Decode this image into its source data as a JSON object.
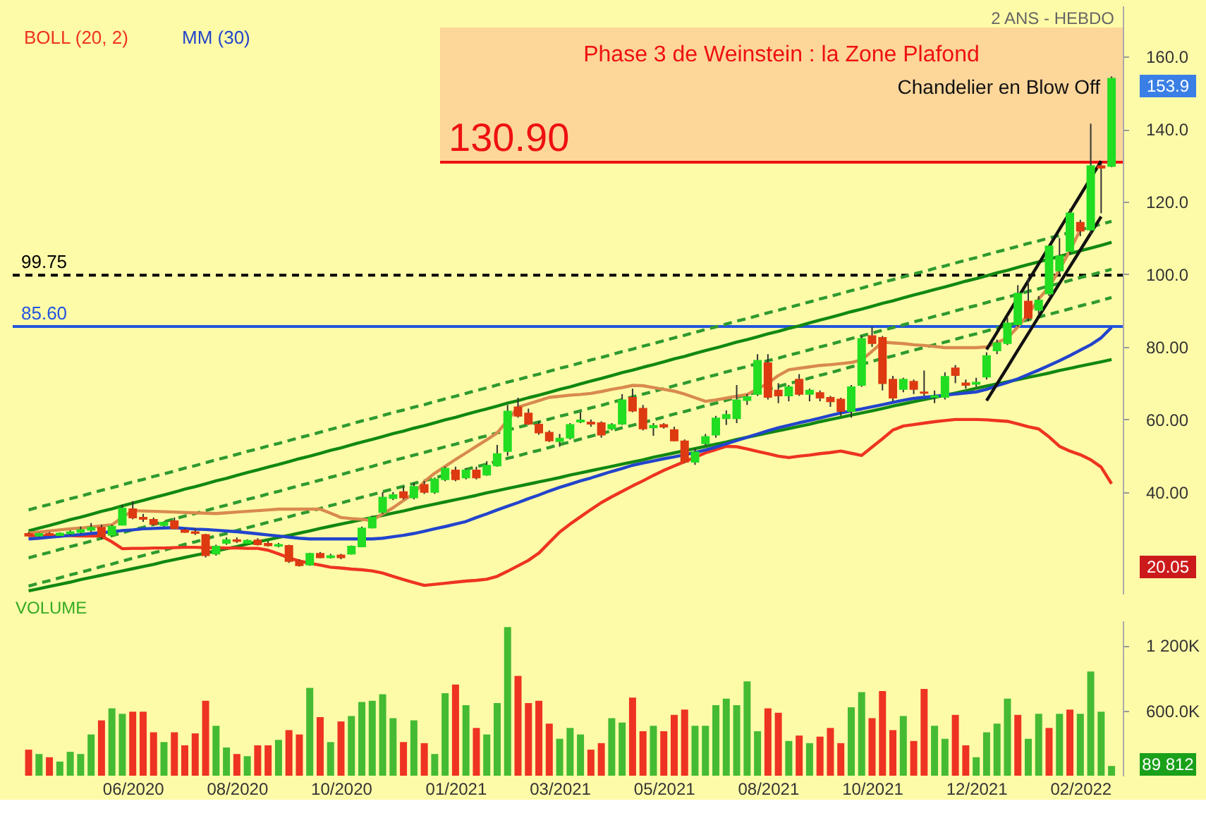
{
  "chart_data": [
    {
      "type": "candlestick",
      "categories": [
        null,
        null,
        null,
        null,
        null,
        null,
        null,
        null,
        null,
        null,
        null,
        null,
        null,
        null,
        null,
        null,
        null,
        null,
        null,
        null,
        null,
        null,
        null,
        null,
        null,
        null,
        null,
        null,
        null,
        null,
        null,
        null,
        null,
        null,
        null,
        null,
        null,
        null,
        null,
        null,
        null,
        null,
        null,
        null,
        null,
        null,
        null,
        null,
        null,
        null,
        null,
        null,
        null,
        null,
        null,
        null,
        null,
        null,
        null,
        null,
        null,
        null,
        null,
        null,
        null,
        null,
        null,
        null,
        null,
        null,
        null,
        null,
        null,
        null,
        null,
        null,
        null,
        null,
        null,
        null,
        null,
        null,
        null,
        null,
        null,
        null,
        null,
        null,
        null,
        null,
        null,
        null,
        null,
        null,
        null,
        null,
        null,
        null,
        null,
        null,
        null,
        null,
        null,
        null,
        null
      ],
      "ohlc": [
        [
          28.5,
          29,
          27.8,
          28
        ],
        [
          28,
          28.8,
          27.7,
          28.5
        ],
        [
          28.5,
          29,
          27.9,
          28.1
        ],
        [
          28.1,
          28.9,
          27.8,
          28.6
        ],
        [
          28.6,
          29.5,
          28.2,
          29
        ],
        [
          29,
          30.5,
          28.5,
          29.6
        ],
        [
          29.6,
          31.5,
          29,
          30.2
        ],
        [
          30.2,
          31,
          27,
          27.8
        ],
        [
          28.2,
          31,
          28,
          30.5
        ],
        [
          31,
          36.5,
          30.8,
          35.5
        ],
        [
          35.3,
          37.5,
          32.5,
          33
        ],
        [
          33,
          34,
          31.8,
          32.6
        ],
        [
          32.4,
          33,
          30.8,
          31.2
        ],
        [
          30.9,
          32,
          30.5,
          31.6
        ],
        [
          32,
          33,
          29.8,
          30
        ],
        [
          29.5,
          30,
          28.8,
          29
        ],
        [
          29,
          30,
          28.2,
          28.7
        ],
        [
          28.2,
          28.5,
          22,
          22.6
        ],
        [
          23,
          25.5,
          22.5,
          25
        ],
        [
          26,
          27.5,
          25.5,
          26.8
        ],
        [
          26.8,
          27.5,
          26,
          26.5
        ],
        [
          26,
          27,
          25.8,
          26.6
        ],
        [
          26.7,
          27.3,
          25.3,
          25.6
        ],
        [
          25.8,
          26.5,
          25,
          25.3
        ],
        [
          25.2,
          26,
          24.8,
          25.5
        ],
        [
          25.2,
          25.5,
          20.5,
          21
        ],
        [
          21,
          21.5,
          19.5,
          19.8
        ],
        [
          20,
          23.3,
          19.7,
          23
        ],
        [
          23,
          23.5,
          21.8,
          22
        ],
        [
          22,
          23,
          21.7,
          22.4
        ],
        [
          22.6,
          23,
          21.5,
          22
        ],
        [
          23,
          25.3,
          22.8,
          25
        ],
        [
          25,
          30.5,
          24.8,
          30
        ],
        [
          30.2,
          33.5,
          30,
          33
        ],
        [
          34.5,
          40,
          34,
          38.5
        ],
        [
          38.3,
          40,
          37.8,
          39.2
        ],
        [
          40,
          41.5,
          38,
          38.5
        ],
        [
          38.5,
          42.5,
          38,
          41.5
        ],
        [
          42,
          43,
          39.5,
          40
        ],
        [
          40,
          44,
          39.5,
          43.5
        ],
        [
          43.5,
          47,
          43,
          46.5
        ],
        [
          46,
          47,
          43,
          43.5
        ],
        [
          44,
          46.5,
          43.5,
          46
        ],
        [
          46,
          47,
          43.5,
          44
        ],
        [
          44.8,
          48.5,
          44.5,
          47.3
        ],
        [
          47.3,
          53,
          47,
          50.5
        ],
        [
          51.3,
          64,
          50,
          62.2
        ],
        [
          63.4,
          66,
          60.5,
          61
        ],
        [
          61.7,
          63,
          58.5,
          58.8
        ],
        [
          58.6,
          59.5,
          55.8,
          56.4
        ],
        [
          56.4,
          57,
          53.8,
          54.2
        ],
        [
          54,
          56,
          52.5,
          54.8
        ],
        [
          55,
          59,
          54.5,
          58.5
        ],
        [
          59.4,
          62,
          59,
          59.8
        ],
        [
          59.2,
          60,
          58,
          58.8
        ],
        [
          59,
          59.5,
          55,
          55.8
        ],
        [
          57.5,
          59,
          57,
          58.5
        ],
        [
          58.8,
          67,
          58.5,
          65.3
        ],
        [
          66,
          68.5,
          62,
          62.4
        ],
        [
          63,
          64,
          57,
          57.5
        ],
        [
          57.8,
          59,
          55.5,
          58.3
        ],
        [
          58.5,
          59,
          57.5,
          58
        ],
        [
          57.1,
          58,
          54,
          54.2
        ],
        [
          54,
          54.5,
          48,
          48.3
        ],
        [
          48.3,
          52,
          47.5,
          51
        ],
        [
          53.4,
          56,
          52.8,
          55.2
        ],
        [
          55.8,
          61,
          55,
          60.3
        ],
        [
          60.3,
          62.5,
          58.5,
          61.3
        ],
        [
          60.3,
          69.5,
          59,
          65.3
        ],
        [
          65.3,
          67,
          64,
          66.2
        ],
        [
          67,
          78,
          66.5,
          76.2
        ],
        [
          75.5,
          78,
          65.5,
          66.2
        ],
        [
          68,
          70,
          64.5,
          66.6
        ],
        [
          66.6,
          69.5,
          65,
          68.9
        ],
        [
          71,
          72.5,
          66.5,
          67
        ],
        [
          67,
          68.5,
          65,
          68
        ],
        [
          67.3,
          68,
          65,
          66
        ],
        [
          66,
          66.5,
          63.5,
          65
        ],
        [
          65.5,
          66,
          61,
          62.3
        ],
        [
          62.3,
          69.5,
          60.5,
          68.9
        ],
        [
          69.5,
          83,
          69,
          82.2
        ],
        [
          83,
          85.5,
          80,
          81
        ],
        [
          82.5,
          83,
          68,
          70
        ],
        [
          71,
          72,
          65,
          66
        ],
        [
          68.4,
          71.5,
          67.5,
          71
        ],
        [
          70.4,
          71,
          67,
          68.4
        ],
        [
          67.5,
          73.5,
          66.5,
          67.3
        ],
        [
          66.2,
          68,
          64.5,
          66.5
        ],
        [
          66.2,
          73,
          65.5,
          71.8
        ],
        [
          74.1,
          75,
          70,
          72.2
        ],
        [
          70,
          71,
          68.5,
          69.5
        ],
        [
          69.8,
          71.5,
          69,
          70.2
        ],
        [
          71.8,
          78.5,
          71,
          77.5
        ],
        [
          79,
          82,
          78,
          81
        ],
        [
          81,
          88,
          80.5,
          86.5
        ],
        [
          86.2,
          97,
          85.5,
          94.7
        ],
        [
          92.5,
          99,
          87,
          88
        ],
        [
          90.2,
          94,
          89,
          92.8
        ],
        [
          94.7,
          108,
          94,
          107.7
        ],
        [
          101,
          110,
          100,
          105
        ],
        [
          106.4,
          118,
          105.5,
          116.8
        ],
        [
          114.2,
          115,
          110.5,
          112
        ],
        [
          112.3,
          141.5,
          111,
          129.8
        ],
        [
          129.8,
          130.5,
          116.8,
          129.3
        ],
        [
          129.8,
          154.5,
          129.5,
          153.9
        ]
      ],
      "colors": [
        "#dd3a11",
        "#22dd22",
        "#dd3a11",
        "#22dd22",
        "#22dd22",
        "#22dd22",
        "#22dd22",
        "#dd3a11",
        "#22dd22",
        "#22dd22",
        "#dd3a11",
        "#dd3a11",
        "#dd3a11",
        "#22dd22",
        "#dd3a11",
        "#dd3a11",
        "#dd3a11",
        "#dd3a11",
        "#22dd22",
        "#22dd22",
        "#dd3a11",
        "#22dd22",
        "#dd3a11",
        "#dd3a11",
        "#22dd22",
        "#dd3a11",
        "#dd3a11",
        "#22dd22",
        "#dd3a11",
        "#22dd22",
        "#dd3a11",
        "#22dd22",
        "#22dd22",
        "#22dd22",
        "#22dd22",
        "#22dd22",
        "#dd3a11",
        "#22dd22",
        "#dd3a11",
        "#22dd22",
        "#22dd22",
        "#dd3a11",
        "#22dd22",
        "#dd3a11",
        "#22dd22",
        "#22dd22",
        "#22dd22",
        "#dd3a11",
        "#dd3a11",
        "#dd3a11",
        "#dd3a11",
        "#22dd22",
        "#22dd22",
        "#22dd22",
        "#dd3a11",
        "#dd3a11",
        "#22dd22",
        "#22dd22",
        "#dd3a11",
        "#dd3a11",
        "#22dd22",
        "#dd3a11",
        "#dd3a11",
        "#dd3a11",
        "#22dd22",
        "#22dd22",
        "#22dd22",
        "#22dd22",
        "#22dd22",
        "#22dd22",
        "#22dd22",
        "#dd3a11",
        "#dd3a11",
        "#22dd22",
        "#dd3a11",
        "#22dd22",
        "#dd3a11",
        "#dd3a11",
        "#dd3a11",
        "#22dd22",
        "#22dd22",
        "#dd3a11",
        "#dd3a11",
        "#dd3a11",
        "#22dd22",
        "#dd3a11",
        "#dd3a11",
        "#22dd22",
        "#22dd22",
        "#dd3a11",
        "#dd3a11",
        "#22dd22",
        "#22dd22",
        "#22dd22",
        "#22dd22",
        "#22dd22",
        "#dd3a11",
        "#22dd22",
        "#22dd22",
        "#22dd22",
        "#22dd22",
        "#dd3a11",
        "#22dd22",
        "#dd3a11",
        "#22dd22"
      ],
      "series": [
        {
          "type": "line",
          "color": "#118811",
          "values": [
            12.8,
            13.4,
            14.0,
            14.6,
            15.2,
            15.9,
            16.5,
            17.1,
            17.7,
            18.3,
            18.9,
            19.5,
            20.1,
            20.8,
            21.4,
            22.0,
            22.6,
            23.2,
            23.8,
            24.4,
            25.0,
            25.7,
            26.3,
            26.9,
            27.5,
            28.1,
            28.7,
            29.3,
            30.0,
            30.6,
            31.2,
            31.8,
            32.4,
            33.0,
            33.6,
            34.2,
            34.8,
            35.5,
            36.1,
            36.7,
            37.3,
            37.9,
            38.5,
            39.1,
            39.8,
            40.4,
            41.0,
            41.6,
            42.2,
            42.8,
            43.4,
            44.0,
            44.7,
            45.3,
            45.9,
            46.5,
            47.1,
            47.7,
            48.3,
            48.9,
            49.6,
            50.2,
            50.8,
            51.4,
            52.0,
            52.6,
            53.2,
            53.8,
            54.5,
            55.1,
            55.7,
            56.3,
            56.9,
            57.5,
            58.1,
            58.7,
            59.4,
            60.0,
            60.6,
            61.2,
            61.8,
            62.4,
            63.0,
            63.7,
            64.3,
            64.9,
            65.5,
            66.1,
            66.7,
            67.3,
            67.9,
            68.6,
            69.2,
            69.8,
            70.4,
            71.0,
            71.6,
            72.2,
            72.8,
            73.5,
            74.1,
            74.7,
            75.3,
            75.9,
            76.5
          ]
        },
        {
          "type": "line",
          "color": "#118811",
          "values": [
            29.3,
            30.1,
            30.8,
            31.6,
            32.4,
            33.1,
            33.9,
            34.7,
            35.4,
            36.2,
            37.0,
            37.7,
            38.5,
            39.2,
            40.0,
            40.8,
            41.5,
            42.3,
            43.1,
            43.8,
            44.6,
            45.4,
            46.1,
            46.9,
            47.6,
            48.4,
            49.2,
            49.9,
            50.7,
            51.5,
            52.2,
            53.0,
            53.8,
            54.5,
            55.3,
            56.1,
            56.8,
            57.6,
            58.3,
            59.1,
            59.9,
            60.6,
            61.4,
            62.2,
            62.9,
            63.7,
            64.5,
            65.2,
            66.0,
            66.7,
            67.5,
            68.3,
            69.0,
            69.8,
            70.6,
            71.3,
            72.1,
            72.9,
            73.6,
            74.4,
            75.1,
            75.9,
            76.7,
            77.4,
            78.2,
            79.0,
            79.7,
            80.5,
            81.3,
            82.0,
            82.8,
            83.6,
            84.3,
            85.1,
            85.8,
            86.6,
            87.4,
            88.1,
            88.9,
            89.7,
            90.4,
            91.2,
            92.0,
            92.7,
            93.5,
            94.3,
            95.0,
            95.8,
            96.5,
            97.3,
            98.1,
            98.8,
            99.6,
            100.4,
            101.1,
            101.9,
            102.7,
            103.4,
            104.2,
            104.9,
            105.7,
            106.5,
            107.2,
            108.0,
            108.8
          ]
        },
        {
          "type": "line",
          "color": "#2f9a2f",
          "line_style": "dashed",
          "values": [
            35.1,
            35.9,
            36.6,
            37.4,
            38.2,
            38.9,
            39.7,
            40.5,
            41.2,
            42.0,
            42.8,
            43.5,
            44.3,
            45.0,
            45.8,
            46.6,
            47.3,
            48.1,
            48.9,
            49.6,
            50.4,
            51.2,
            51.9,
            52.7,
            53.4,
            54.2,
            55.0,
            55.7,
            56.5,
            57.3,
            58.0,
            58.8,
            59.6,
            60.3,
            61.1,
            61.9,
            62.6,
            63.4,
            64.1,
            64.9,
            65.7,
            66.4,
            67.2,
            68.0,
            68.7,
            69.5,
            70.3,
            71.0,
            71.8,
            72.5,
            73.3,
            74.1,
            74.8,
            75.6,
            76.4,
            77.1,
            77.9,
            78.7,
            79.4,
            80.2,
            80.9,
            81.7,
            82.5,
            83.2,
            84.0,
            84.8,
            85.5,
            86.3,
            87.1,
            87.8,
            88.6,
            89.4,
            90.1,
            90.9,
            91.6,
            92.4,
            93.2,
            93.9,
            94.7,
            95.5,
            96.2,
            97.0,
            97.8,
            98.5,
            99.3,
            100.1,
            100.8,
            101.6,
            102.3,
            103.1,
            103.9,
            104.6,
            105.4,
            106.2,
            106.9,
            107.7,
            108.5,
            109.2,
            110.0,
            110.7,
            111.5,
            112.3,
            113.0,
            113.8,
            114.6
          ]
        },
        {
          "type": "line",
          "color": "#2f9a2f",
          "line_style": "dashed",
          "values": [
            21.9,
            22.7,
            23.4,
            24.2,
            25.0,
            25.7,
            26.5,
            27.3,
            28.0,
            28.8,
            29.6,
            30.3,
            31.1,
            31.8,
            32.6,
            33.4,
            34.1,
            34.9,
            35.7,
            36.4,
            37.2,
            38.0,
            38.7,
            39.5,
            40.2,
            41.0,
            41.8,
            42.5,
            43.3,
            44.1,
            44.8,
            45.6,
            46.4,
            47.1,
            47.9,
            48.7,
            49.4,
            50.2,
            50.9,
            51.7,
            52.5,
            53.2,
            54.0,
            54.8,
            55.5,
            56.3,
            57.1,
            57.8,
            58.6,
            59.3,
            60.1,
            60.9,
            61.6,
            62.4,
            63.2,
            63.9,
            64.7,
            65.5,
            66.2,
            67.0,
            67.7,
            68.5,
            69.3,
            70.0,
            70.8,
            71.6,
            72.3,
            73.1,
            73.9,
            74.6,
            75.4,
            76.2,
            76.9,
            77.7,
            78.4,
            79.2,
            80.0,
            80.7,
            81.5,
            82.3,
            83.0,
            83.8,
            84.6,
            85.3,
            86.1,
            86.9,
            87.6,
            88.4,
            89.1,
            89.9,
            90.7,
            91.4,
            92.2,
            93.0,
            93.7,
            94.5,
            95.3,
            96.0,
            96.8,
            97.5,
            98.3,
            99.1,
            99.8,
            100.6,
            101.4
          ]
        },
        {
          "type": "line",
          "color": "#2f9a2f",
          "line_style": "dashed",
          "values": [
            14.1,
            14.9,
            15.6,
            16.4,
            17.2,
            17.9,
            18.7,
            19.5,
            20.2,
            21.0,
            21.8,
            22.5,
            23.3,
            24.0,
            24.8,
            25.6,
            26.3,
            27.1,
            27.9,
            28.6,
            29.4,
            30.2,
            30.9,
            31.7,
            32.4,
            33.2,
            34.0,
            34.7,
            35.5,
            36.3,
            37.0,
            37.8,
            38.6,
            39.3,
            40.1,
            40.9,
            41.6,
            42.4,
            43.1,
            43.9,
            44.7,
            45.4,
            46.2,
            47.0,
            47.7,
            48.5,
            49.3,
            50.0,
            50.8,
            51.5,
            52.3,
            53.1,
            53.8,
            54.6,
            55.4,
            56.1,
            56.9,
            57.7,
            58.4,
            59.2,
            59.9,
            60.7,
            61.5,
            62.2,
            63.0,
            63.8,
            64.5,
            65.3,
            66.1,
            66.8,
            67.6,
            68.4,
            69.1,
            69.9,
            70.6,
            71.4,
            72.2,
            72.9,
            73.7,
            74.5,
            75.2,
            76.0,
            76.8,
            77.5,
            78.3,
            79.1,
            79.8,
            80.6,
            81.3,
            82.1,
            82.9,
            83.6,
            84.4,
            85.2,
            85.9,
            86.7,
            87.5,
            88.2,
            89.0,
            89.7,
            90.5,
            91.3,
            92.0,
            92.8,
            93.6
          ]
        },
        {
          "type": "line",
          "color": "#d98a4e",
          "values": [
            28.7,
            29.0,
            29.3,
            29.6,
            29.9,
            30.1,
            30.4,
            30.7,
            31.0,
            33.0,
            34.9,
            34.8,
            34.7,
            34.6,
            34.5,
            34.4,
            34.3,
            34.2,
            34.1,
            34.3,
            34.5,
            34.7,
            34.9,
            35.1,
            35.3,
            35.3,
            35.3,
            35.3,
            35.3,
            34.2,
            33.0,
            32.7,
            32.5,
            32.2,
            34.0,
            35.7,
            37.7,
            39.6,
            42.9,
            45.2,
            47.1,
            49.0,
            50.8,
            52.6,
            54.4,
            56.3,
            59.8,
            63.4,
            64.3,
            65.2,
            66.1,
            66.4,
            66.7,
            66.9,
            67.2,
            67.7,
            68.3,
            68.8,
            69.4,
            69.3,
            68.8,
            68.3,
            67.8,
            67.0,
            66.0,
            65.0,
            65.4,
            65.9,
            66.4,
            66.9,
            68.4,
            70.0,
            72.1,
            73.7,
            74.1,
            74.5,
            74.9,
            75.1,
            75.4,
            75.7,
            76.4,
            78.8,
            81.3,
            81.1,
            80.9,
            80.6,
            80.4,
            80.1,
            79.8,
            79.8,
            79.8,
            79.8,
            80.0,
            81.2,
            82.4,
            85.5,
            89.0,
            93.2,
            96.5,
            101.3,
            106.5,
            112.3,
            null,
            null,
            null
          ]
        },
        {
          "name": "BOLL (20, 2)",
          "type": "line",
          "color": "#ee3322",
          "values": [
            28.0,
            28.0,
            28.0,
            28.0,
            28.0,
            27.9,
            27.9,
            27.9,
            26.3,
            24.4,
            24.5,
            24.5,
            24.6,
            24.6,
            24.7,
            24.8,
            24.8,
            24.7,
            24.7,
            24.6,
            24.6,
            24.5,
            24.5,
            24.0,
            23.0,
            21.9,
            21.0,
            20.4,
            19.9,
            19.3,
            19.1,
            18.8,
            18.6,
            18.3,
            17.7,
            16.8,
            15.9,
            15.1,
            14.3,
            14.6,
            14.9,
            15.2,
            15.5,
            15.7,
            16.0,
            16.8,
            18.2,
            19.7,
            21.2,
            23.2,
            26.1,
            29.0,
            31.2,
            33.2,
            35.2,
            37.1,
            38.7,
            40.2,
            41.7,
            43.1,
            44.6,
            46.0,
            47.2,
            48.4,
            49.6,
            50.8,
            51.7,
            52.6,
            52.5,
            51.9,
            51.2,
            50.6,
            49.9,
            49.5,
            49.9,
            50.2,
            50.6,
            50.9,
            51.3,
            50.7,
            50.1,
            52.4,
            54.7,
            57.1,
            58.2,
            58.6,
            59.0,
            59.4,
            59.7,
            60.0,
            60.0,
            60.0,
            59.9,
            59.7,
            59.5,
            58.8,
            58.0,
            57.4,
            55.2,
            52.6,
            51.3,
            50.3,
            48.9,
            46.9,
            42.3
          ]
        },
        {
          "name": "MM (30)",
          "type": "line",
          "color": "#2244cc",
          "values": [
            27.1,
            27.3,
            27.6,
            27.8,
            28.1,
            28.3,
            28.6,
            28.8,
            29.1,
            29.4,
            29.6,
            29.9,
            30.0,
            30.1,
            30.2,
            30.0,
            29.8,
            29.7,
            29.5,
            29.3,
            29.1,
            28.8,
            28.5,
            28.2,
            27.9,
            27.6,
            27.3,
            27.1,
            27.1,
            27.1,
            27.1,
            27.1,
            27.1,
            27.1,
            27.3,
            27.7,
            28.1,
            28.6,
            29.2,
            29.9,
            30.5,
            31.2,
            31.9,
            33.0,
            34.0,
            35.1,
            36.1,
            37.1,
            38.2,
            39.2,
            40.3,
            41.3,
            42.2,
            43.1,
            43.9,
            44.8,
            45.7,
            46.5,
            47.4,
            48.0,
            48.6,
            49.2,
            49.7,
            50.3,
            50.9,
            51.6,
            52.4,
            53.3,
            54.2,
            55.1,
            56.0,
            56.9,
            57.7,
            58.4,
            59.1,
            59.7,
            60.4,
            61.1,
            61.8,
            62.4,
            62.9,
            63.5,
            64.1,
            64.7,
            65.3,
            65.8,
            66.1,
            66.4,
            66.7,
            67.0,
            67.3,
            67.6,
            68.3,
            69.3,
            70.2,
            71.2,
            72.4,
            73.6,
            74.9,
            76.2,
            77.6,
            79.1,
            80.6,
            82.5,
            85.4
          ]
        },
        {
          "type": "line",
          "color": "#111111",
          "values": [
            null,
            null,
            null,
            null,
            null,
            null,
            null,
            null,
            null,
            null,
            null,
            null,
            null,
            null,
            null,
            null,
            null,
            null,
            null,
            null,
            null,
            null,
            null,
            null,
            null,
            null,
            null,
            null,
            null,
            null,
            null,
            null,
            null,
            null,
            null,
            null,
            null,
            null,
            null,
            null,
            null,
            null,
            null,
            null,
            null,
            null,
            null,
            null,
            null,
            null,
            null,
            null,
            null,
            null,
            null,
            null,
            null,
            null,
            null,
            null,
            null,
            null,
            null,
            null,
            null,
            null,
            null,
            null,
            null,
            null,
            null,
            null,
            null,
            null,
            null,
            null,
            null,
            null,
            null,
            null,
            null,
            null,
            null,
            null,
            null,
            null,
            null,
            null,
            null,
            null,
            null,
            null,
            65.2,
            69.8,
            74.4,
            79.1,
            83.7,
            88.3,
            92.9,
            97.5,
            102.1,
            106.7,
            111.3,
            115.9,
            null
          ]
        },
        {
          "type": "line",
          "color": "#111111",
          "values": [
            null,
            null,
            null,
            null,
            null,
            null,
            null,
            null,
            null,
            null,
            null,
            null,
            null,
            null,
            null,
            null,
            null,
            null,
            null,
            null,
            null,
            null,
            null,
            null,
            null,
            null,
            null,
            null,
            null,
            null,
            null,
            null,
            null,
            null,
            null,
            null,
            null,
            null,
            null,
            null,
            null,
            null,
            null,
            null,
            null,
            null,
            null,
            null,
            null,
            null,
            null,
            null,
            null,
            null,
            null,
            null,
            null,
            null,
            null,
            null,
            null,
            null,
            null,
            null,
            null,
            null,
            null,
            null,
            null,
            null,
            null,
            null,
            null,
            null,
            null,
            null,
            null,
            null,
            null,
            null,
            null,
            null,
            null,
            null,
            null,
            null,
            null,
            null,
            null,
            null,
            null,
            null,
            79.3,
            84.0,
            88.8,
            93.5,
            98.2,
            102.9,
            107.6,
            112.4,
            117.1,
            121.8,
            126.5,
            131.2,
            null
          ]
        }
      ],
      "legend": "top left",
      "ylim": [
        12,
        174
      ],
      "yticks": [
        {
          "value": 40,
          "label": "40.00"
        },
        {
          "value": 60,
          "label": "60.00"
        },
        {
          "value": 80,
          "label": "80.00"
        },
        {
          "value": 100,
          "label": "100.0"
        },
        {
          "value": 120,
          "label": "120.0"
        },
        {
          "value": 140,
          "label": "140.0"
        },
        {
          "value": 160,
          "label": "160.0"
        }
      ],
      "tick_labels": "y",
      "ref_lines": [
        {
          "axis": "y",
          "value": 99.75,
          "label": "99.75",
          "color": "#000000",
          "line_style": "dashed"
        },
        {
          "axis": "y",
          "value": 85.6,
          "label": "85.60",
          "color": "#2255dd"
        },
        {
          "axis": "y",
          "value": 130.9,
          "label": "130.90",
          "color": "#ee1111"
        }
      ],
      "bands": [
        {
          "axis": "y",
          "from": 130.9,
          "to": 168,
          "color": "#fdd69a"
        }
      ],
      "annotations": [
        "2 ANS - HEBDO",
        "Phase 3 de Weinstein : la Zone Plafond",
        "Chandelier en Blow Off",
        "153.9",
        "20.05"
      ]
    },
    {
      "type": "bar",
      "title": "VOLUME",
      "categories": [
        null,
        null,
        null,
        null,
        null,
        null,
        null,
        null,
        null,
        null,
        "06/2020",
        null,
        null,
        null,
        null,
        null,
        null,
        null,
        null,
        null,
        "08/2020",
        null,
        null,
        null,
        null,
        null,
        null,
        null,
        null,
        null,
        "10/2020",
        null,
        null,
        null,
        null,
        null,
        null,
        null,
        null,
        null,
        null,
        "01/2021",
        null,
        null,
        null,
        null,
        null,
        null,
        null,
        null,
        null,
        "03/2021",
        null,
        null,
        null,
        null,
        null,
        null,
        null,
        null,
        null,
        "05/2021",
        null,
        null,
        null,
        null,
        null,
        null,
        null,
        null,
        null,
        "08/2021",
        null,
        null,
        null,
        null,
        null,
        null,
        null,
        null,
        null,
        "10/2021",
        null,
        null,
        null,
        null,
        null,
        null,
        null,
        null,
        null,
        "12/2021",
        null,
        null,
        null,
        null,
        null,
        null,
        null,
        null,
        null,
        "02/2022",
        null,
        null,
        null
      ],
      "values": [
        240000,
        200000,
        170000,
        130000,
        220000,
        200000,
        380000,
        510000,
        620000,
        570000,
        590000,
        590000,
        400000,
        310000,
        400000,
        280000,
        390000,
        690000,
        460000,
        260000,
        200000,
        180000,
        280000,
        280000,
        330000,
        420000,
        380000,
        810000,
        540000,
        310000,
        500000,
        550000,
        680000,
        690000,
        750000,
        530000,
        310000,
        510000,
        300000,
        200000,
        760000,
        840000,
        650000,
        440000,
        380000,
        670000,
        1370000,
        920000,
        670000,
        690000,
        480000,
        340000,
        440000,
        380000,
        240000,
        300000,
        530000,
        490000,
        720000,
        410000,
        460000,
        410000,
        560000,
        610000,
        460000,
        460000,
        650000,
        710000,
        650000,
        870000,
        410000,
        620000,
        580000,
        320000,
        370000,
        300000,
        360000,
        440000,
        300000,
        630000,
        770000,
        530000,
        780000,
        420000,
        550000,
        320000,
        800000,
        460000,
        340000,
        560000,
        280000,
        170000,
        400000,
        480000,
        710000,
        560000,
        340000,
        570000,
        440000,
        570000,
        610000,
        570000,
        960000,
        590000,
        89812
      ],
      "colors": [
        "#ee3322",
        "#44bb33",
        "#ee3322",
        "#44bb33",
        "#44bb33",
        "#44bb33",
        "#44bb33",
        "#ee3322",
        "#44bb33",
        "#44bb33",
        "#ee3322",
        "#ee3322",
        "#ee3322",
        "#44bb33",
        "#ee3322",
        "#ee3322",
        "#ee3322",
        "#ee3322",
        "#44bb33",
        "#44bb33",
        "#ee3322",
        "#44bb33",
        "#ee3322",
        "#ee3322",
        "#44bb33",
        "#ee3322",
        "#ee3322",
        "#44bb33",
        "#ee3322",
        "#44bb33",
        "#ee3322",
        "#44bb33",
        "#44bb33",
        "#44bb33",
        "#44bb33",
        "#44bb33",
        "#ee3322",
        "#44bb33",
        "#ee3322",
        "#44bb33",
        "#44bb33",
        "#ee3322",
        "#44bb33",
        "#ee3322",
        "#44bb33",
        "#44bb33",
        "#44bb33",
        "#ee3322",
        "#ee3322",
        "#ee3322",
        "#ee3322",
        "#44bb33",
        "#44bb33",
        "#44bb33",
        "#ee3322",
        "#ee3322",
        "#44bb33",
        "#44bb33",
        "#ee3322",
        "#ee3322",
        "#44bb33",
        "#ee3322",
        "#ee3322",
        "#ee3322",
        "#44bb33",
        "#44bb33",
        "#44bb33",
        "#44bb33",
        "#44bb33",
        "#44bb33",
        "#44bb33",
        "#ee3322",
        "#ee3322",
        "#44bb33",
        "#ee3322",
        "#44bb33",
        "#ee3322",
        "#ee3322",
        "#ee3322",
        "#44bb33",
        "#44bb33",
        "#ee3322",
        "#ee3322",
        "#ee3322",
        "#44bb33",
        "#ee3322",
        "#ee3322",
        "#44bb33",
        "#44bb33",
        "#ee3322",
        "#ee3322",
        "#44bb33",
        "#44bb33",
        "#44bb33",
        "#44bb33",
        "#ee3322",
        "#44bb33",
        "#44bb33",
        "#ee3322",
        "#44bb33",
        "#ee3322",
        "#44bb33",
        "#44bb33",
        "#44bb33",
        "#44bb33"
      ],
      "ylim": [
        0,
        1430000
      ],
      "yticks": [
        {
          "value": 600000,
          "label": "600.0K"
        },
        {
          "value": 1200000,
          "label": "1 200K"
        }
      ],
      "annotations": [
        "89 812"
      ]
    }
  ]
}
